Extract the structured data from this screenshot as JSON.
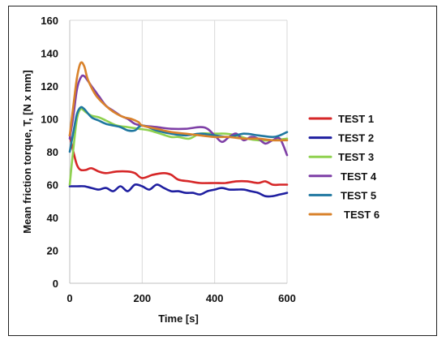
{
  "chart_data": {
    "type": "line",
    "xlabel": "Time [s]",
    "ylabel": "Mean friction torque, T, [N x mm]",
    "xlim": [
      0,
      600
    ],
    "ylim": [
      0,
      160
    ],
    "x_ticks": [
      0,
      200,
      400,
      600
    ],
    "y_ticks": [
      0,
      20,
      40,
      60,
      80,
      100,
      120,
      140,
      160
    ],
    "grid": "vertical",
    "legend_position": "right",
    "series": [
      {
        "name": "TEST 1",
        "color": "#d62728",
        "x": [
          0,
          10,
          20,
          30,
          45,
          60,
          80,
          100,
          130,
          160,
          180,
          200,
          230,
          260,
          280,
          300,
          330,
          360,
          400,
          430,
          460,
          490,
          520,
          540,
          560,
          580,
          600
        ],
        "y": [
          90,
          80,
          72,
          69,
          69,
          70,
          68,
          67,
          68,
          68,
          67,
          64,
          66,
          67,
          66,
          63,
          62,
          61,
          61,
          61,
          62,
          62,
          61,
          62,
          60,
          60,
          60
        ]
      },
      {
        "name": "TEST 2",
        "color": "#1f1fa0",
        "x": [
          0,
          20,
          40,
          60,
          80,
          100,
          120,
          140,
          160,
          180,
          200,
          220,
          240,
          260,
          280,
          300,
          320,
          340,
          360,
          380,
          400,
          420,
          440,
          460,
          480,
          500,
          520,
          540,
          560,
          580,
          600
        ],
        "y": [
          59,
          59,
          59,
          58,
          57,
          58,
          56,
          59,
          56,
          60,
          59,
          57,
          60,
          58,
          56,
          56,
          55,
          55,
          54,
          56,
          57,
          58,
          57,
          57,
          57,
          56,
          55,
          53,
          53,
          54,
          55
        ]
      },
      {
        "name": "TEST 3",
        "color": "#8fd14f",
        "x": [
          0,
          10,
          20,
          30,
          45,
          60,
          80,
          100,
          130,
          160,
          190,
          220,
          250,
          280,
          300,
          330,
          360,
          400,
          430,
          460,
          490,
          520,
          560,
          600
        ],
        "y": [
          60,
          82,
          100,
          106,
          104,
          102,
          101,
          99,
          96,
          95,
          94,
          93,
          91,
          89,
          89,
          88,
          91,
          91,
          91,
          90,
          88,
          87,
          87,
          88
        ]
      },
      {
        "name": "TEST 4",
        "color": "#7e3fa6",
        "x": [
          0,
          10,
          20,
          30,
          40,
          60,
          80,
          100,
          120,
          140,
          160,
          180,
          200,
          240,
          280,
          320,
          360,
          380,
          400,
          420,
          440,
          460,
          480,
          500,
          520,
          540,
          560,
          580,
          600
        ],
        "y": [
          88,
          102,
          118,
          125,
          126,
          120,
          114,
          108,
          105,
          102,
          100,
          97,
          96,
          95,
          94,
          94,
          95,
          94,
          90,
          86,
          89,
          91,
          87,
          89,
          88,
          85,
          87,
          88,
          78
        ]
      },
      {
        "name": "TEST 5",
        "color": "#1f77a0",
        "x": [
          0,
          10,
          20,
          30,
          40,
          60,
          80,
          100,
          120,
          140,
          160,
          180,
          200,
          240,
          280,
          320,
          360,
          400,
          440,
          480,
          520,
          560,
          580,
          600
        ],
        "y": [
          80,
          92,
          103,
          107,
          106,
          101,
          99,
          97,
          96,
          95,
          93,
          93,
          96,
          93,
          91,
          90,
          91,
          90,
          89,
          91,
          90,
          89,
          90,
          92
        ]
      },
      {
        "name": "TEST 6",
        "color": "#d9822b",
        "x": [
          0,
          10,
          20,
          30,
          40,
          50,
          70,
          90,
          110,
          130,
          150,
          170,
          190,
          200,
          240,
          280,
          320,
          360,
          400,
          440,
          480,
          520,
          560,
          600
        ],
        "y": [
          90,
          108,
          125,
          134,
          132,
          124,
          115,
          110,
          106,
          103,
          101,
          100,
          98,
          96,
          94,
          92,
          91,
          90,
          89,
          89,
          88,
          88,
          87,
          87
        ]
      }
    ]
  }
}
